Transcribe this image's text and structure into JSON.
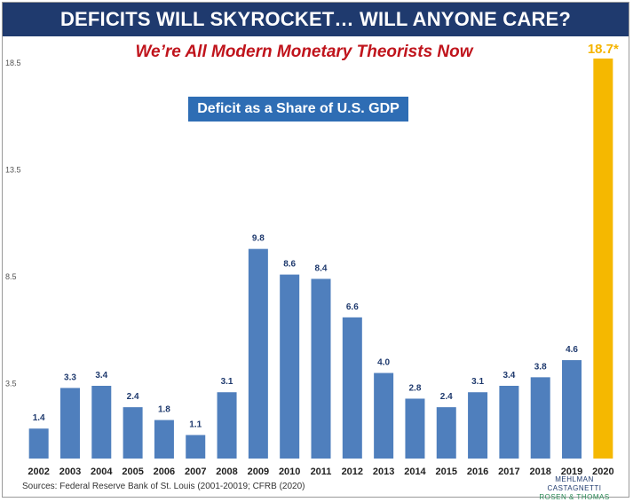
{
  "header": {
    "title": "DEFICITS WILL SKYROCKET… WILL ANYONE CARE?",
    "subtitle": "We’re All Modern Monetary Theorists Now"
  },
  "footer": {
    "source": "Sources: Federal Reserve Bank of St. Louis (2001-20019; CFRB (2020)",
    "logo_line1": "MEHLMAN CASTAGNETTI",
    "logo_line2": "ROSEN & THOMAS"
  },
  "colors": {
    "bar": "#4f7fbd",
    "highlight": "#f5b800",
    "banner": "#1f3a6e",
    "subtitle": "#c0141c"
  },
  "chart_data": {
    "type": "bar",
    "title": "Deficit as a Share of U.S. GDP",
    "categories": [
      "2002",
      "2003",
      "2004",
      "2005",
      "2006",
      "2007",
      "2008",
      "2009",
      "2010",
      "2011",
      "2012",
      "2013",
      "2014",
      "2015",
      "2016",
      "2017",
      "2018",
      "2019",
      "2020"
    ],
    "values": [
      1.4,
      3.3,
      3.4,
      2.4,
      1.8,
      1.1,
      3.1,
      9.8,
      8.6,
      8.4,
      6.6,
      4.0,
      2.8,
      2.4,
      3.1,
      3.4,
      3.8,
      4.6,
      18.7
    ],
    "value_labels": [
      "1.4",
      "3.3",
      "3.4",
      "2.4",
      "1.8",
      "1.1",
      "3.1",
      "9.8",
      "8.6",
      "8.4",
      "6.6",
      "4.0",
      "2.8",
      "2.4",
      "3.1",
      "3.4",
      "3.8",
      "4.6",
      "18.7*"
    ],
    "highlight_index": 18,
    "yticks": [
      "3.5",
      "8.5",
      "13.5",
      "18.5"
    ],
    "ylim": [
      0,
      18.7
    ],
    "grid": false
  }
}
